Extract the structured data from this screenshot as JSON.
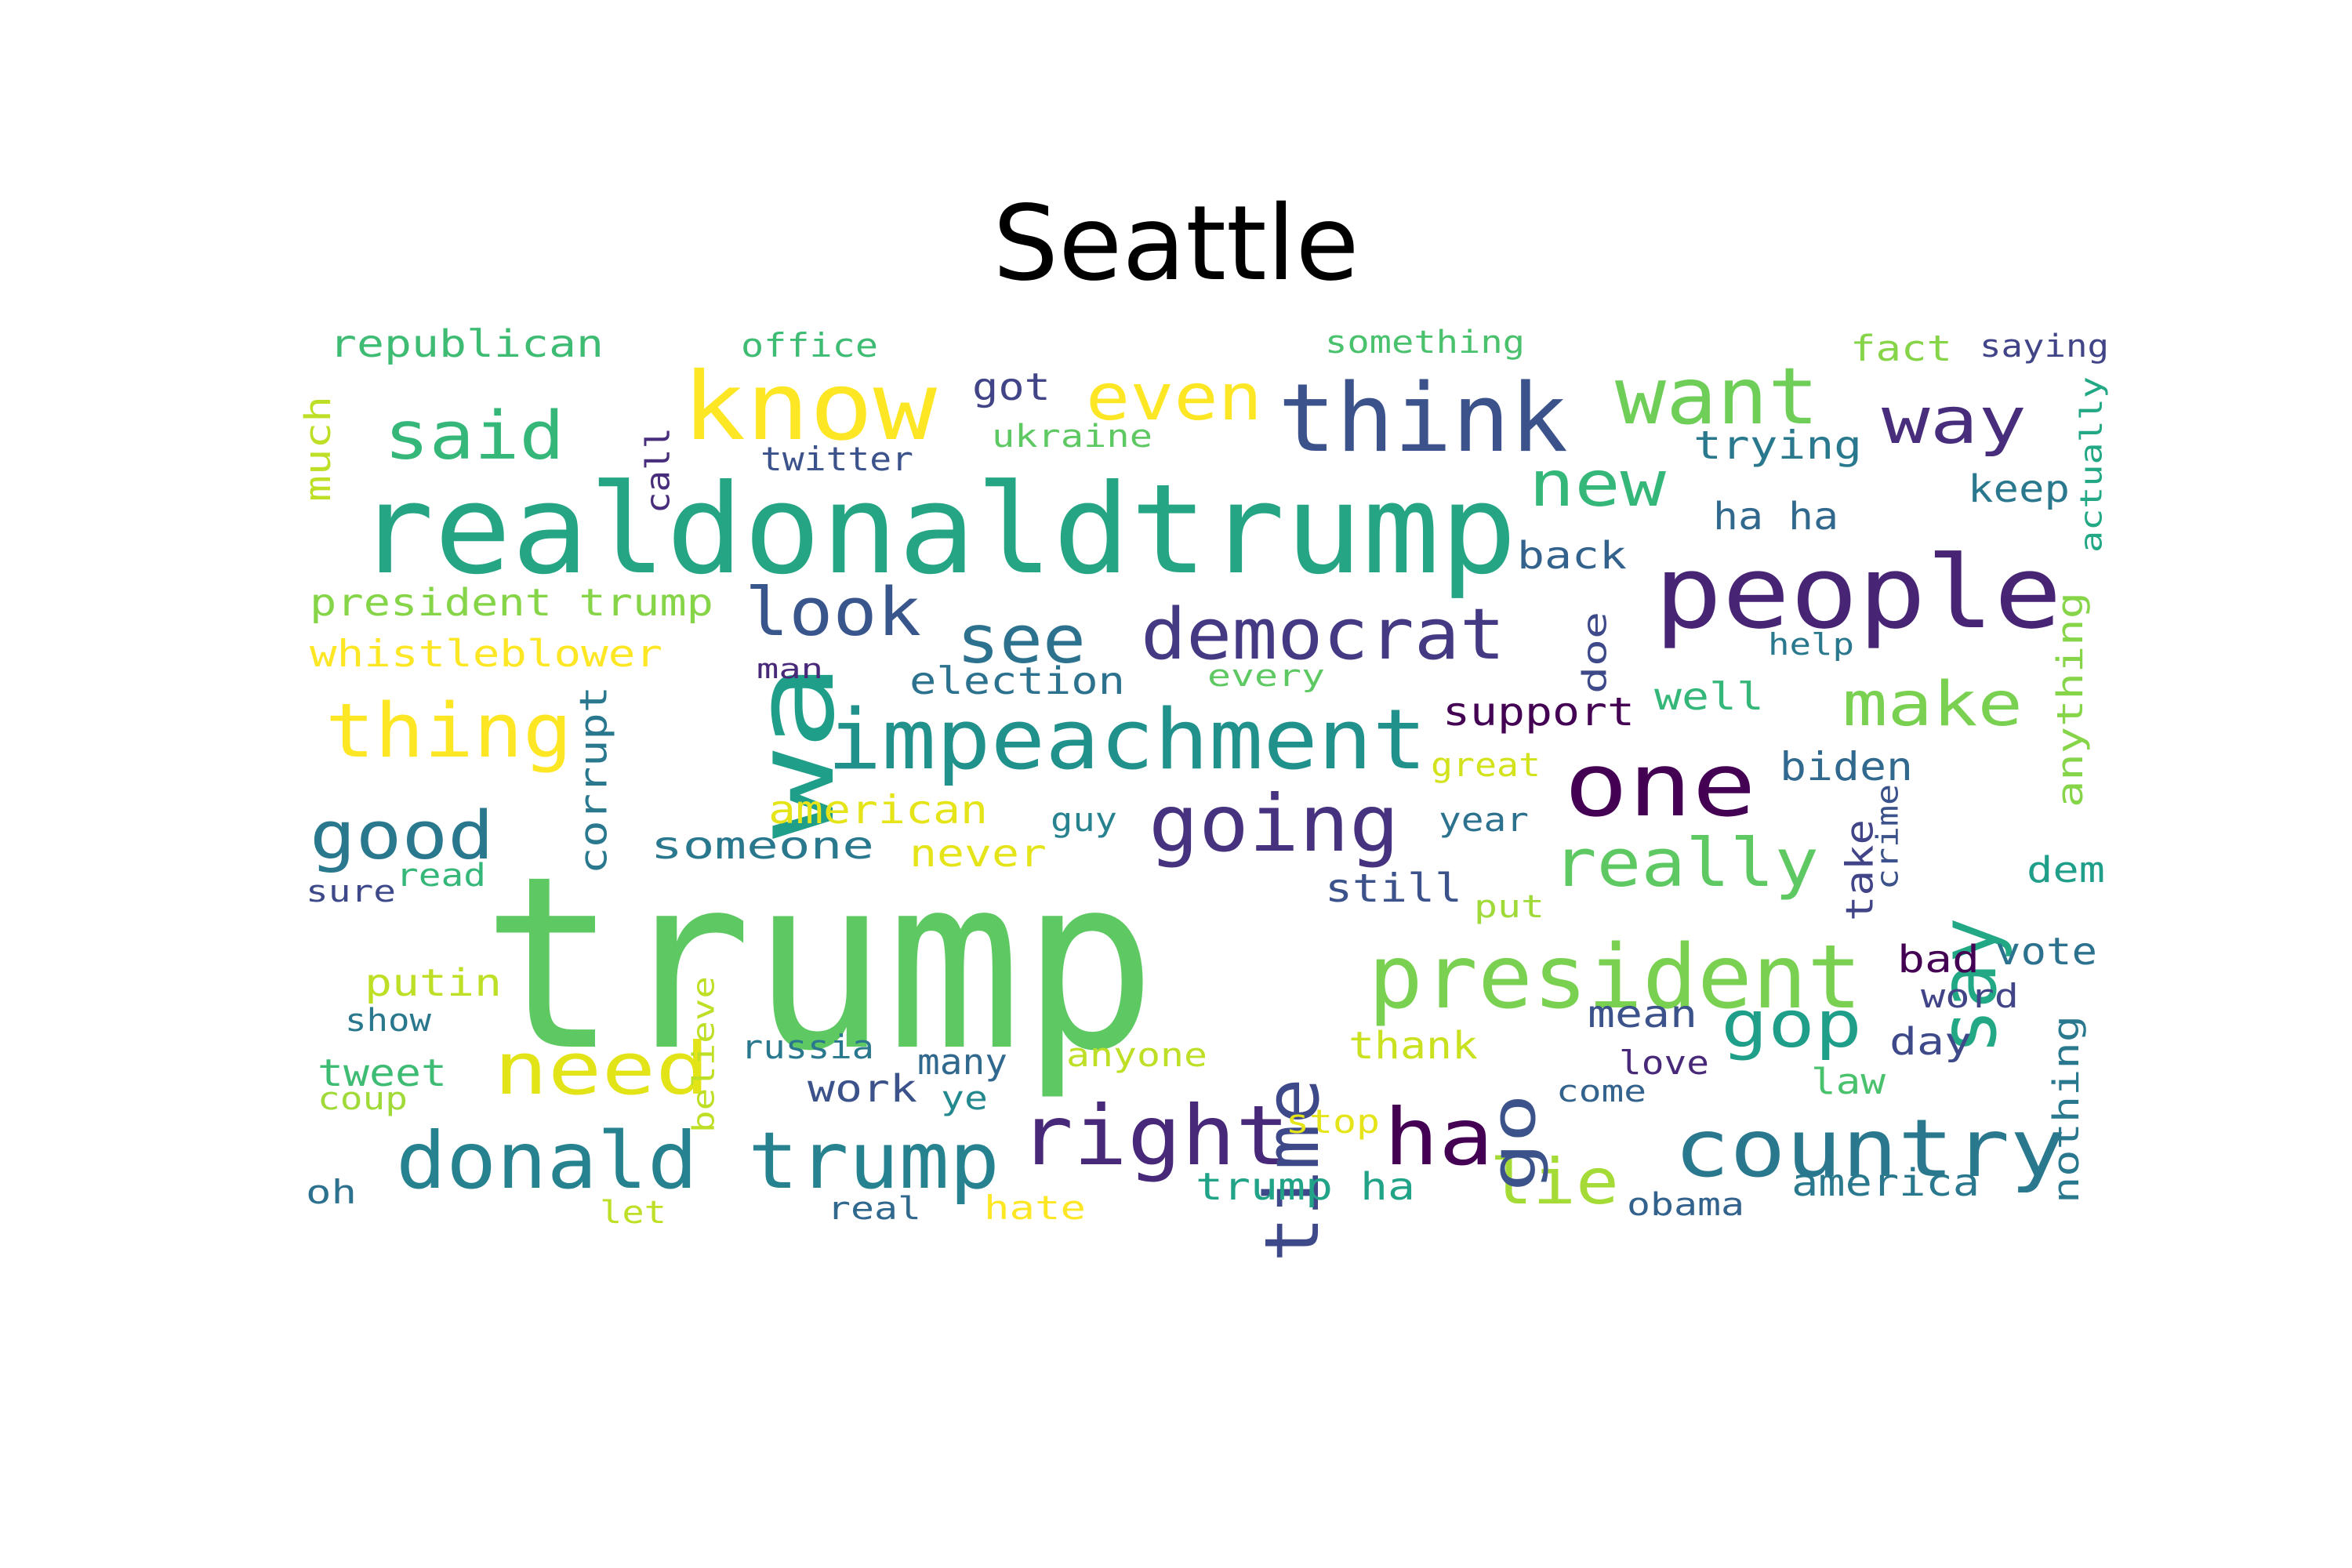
{
  "title": "Seattle",
  "words": [
    {
      "text": "trump",
      "color": "#5ec962"
    },
    {
      "text": "realdonaldtrump",
      "color": "#25a584"
    },
    {
      "text": "wa",
      "color": "#1f9e89"
    },
    {
      "text": "people",
      "color": "#482475"
    },
    {
      "text": "impeachment",
      "color": "#21918c"
    },
    {
      "text": "president",
      "color": "#7ad151"
    },
    {
      "text": "think",
      "color": "#3b528b"
    },
    {
      "text": "know",
      "color": "#fde725"
    },
    {
      "text": "donald trump",
      "color": "#26828e"
    },
    {
      "text": "country",
      "color": "#2a788e"
    },
    {
      "text": "right",
      "color": "#482878"
    },
    {
      "text": "one",
      "color": "#440154"
    },
    {
      "text": "want",
      "color": "#6ece58"
    },
    {
      "text": "democrat",
      "color": "#443983"
    },
    {
      "text": "going",
      "color": "#46327e"
    },
    {
      "text": "ha",
      "color": "#440154"
    },
    {
      "text": "thing",
      "color": "#fde725"
    },
    {
      "text": "say",
      "color": "#22a884"
    },
    {
      "text": "time",
      "color": "#3e4989"
    },
    {
      "text": "need",
      "color": "#e2e418"
    },
    {
      "text": "said",
      "color": "#35b779"
    },
    {
      "text": "good",
      "color": "#2a788e"
    },
    {
      "text": "see",
      "color": "#2c728e"
    },
    {
      "text": "look",
      "color": "#39568c"
    },
    {
      "text": "really",
      "color": "#5ec962"
    },
    {
      "text": "even",
      "color": "#fde725"
    },
    {
      "text": "gop",
      "color": "#1f9e89"
    },
    {
      "text": "way",
      "color": "#472d7b"
    },
    {
      "text": "lie",
      "color": "#a5db36"
    },
    {
      "text": "new",
      "color": "#35b779"
    },
    {
      "text": "make",
      "color": "#7ad151"
    },
    {
      "text": "go",
      "color": "#3b528b"
    },
    {
      "text": "republican",
      "color": "#3fbc73"
    },
    {
      "text": "office",
      "color": "#3fbc73"
    },
    {
      "text": "something",
      "color": "#4ac16d"
    },
    {
      "text": "fact",
      "color": "#86d549"
    },
    {
      "text": "saying",
      "color": "#414487"
    },
    {
      "text": "much",
      "color": "#bddf26"
    },
    {
      "text": "call",
      "color": "#472d7b"
    },
    {
      "text": "got",
      "color": "#414487"
    },
    {
      "text": "twitter",
      "color": "#3b528b"
    },
    {
      "text": "ukraine",
      "color": "#5ec962"
    },
    {
      "text": "trying",
      "color": "#2a788e"
    },
    {
      "text": "keep",
      "color": "#2a788e"
    },
    {
      "text": "actually",
      "color": "#22a884"
    },
    {
      "text": "ha ha",
      "color": "#31688e"
    },
    {
      "text": "back",
      "color": "#33638d"
    },
    {
      "text": "president trump",
      "color": "#86d549"
    },
    {
      "text": "whistleblower",
      "color": "#fde725"
    },
    {
      "text": "man",
      "color": "#482878"
    },
    {
      "text": "election",
      "color": "#2c728e"
    },
    {
      "text": "every",
      "color": "#5ec962"
    },
    {
      "text": "doe",
      "color": "#3e4989"
    },
    {
      "text": "help",
      "color": "#2a788e"
    },
    {
      "text": "anything",
      "color": "#86d549"
    },
    {
      "text": "support",
      "color": "#440154"
    },
    {
      "text": "well",
      "color": "#35b779"
    },
    {
      "text": "corrupt",
      "color": "#2a788e"
    },
    {
      "text": "great",
      "color": "#d2e21b"
    },
    {
      "text": "biden",
      "color": "#31688e"
    },
    {
      "text": "american",
      "color": "#e5e419"
    },
    {
      "text": "guy",
      "color": "#26828e"
    },
    {
      "text": "year",
      "color": "#2c728e"
    },
    {
      "text": "take",
      "color": "#414487"
    },
    {
      "text": "crime",
      "color": "#3b528b"
    },
    {
      "text": "someone",
      "color": "#2a788e"
    },
    {
      "text": "never",
      "color": "#e5e419"
    },
    {
      "text": "read",
      "color": "#35b779"
    },
    {
      "text": "sure",
      "color": "#3e4989"
    },
    {
      "text": "still",
      "color": "#3b528b"
    },
    {
      "text": "put",
      "color": "#a0da39"
    },
    {
      "text": "dem",
      "color": "#1f9e89"
    },
    {
      "text": "bad",
      "color": "#440154"
    },
    {
      "text": "vote",
      "color": "#2c728e"
    },
    {
      "text": "putin",
      "color": "#bddf26"
    },
    {
      "text": "word",
      "color": "#414487"
    },
    {
      "text": "show",
      "color": "#2a788e"
    },
    {
      "text": "believe",
      "color": "#bddf26"
    },
    {
      "text": "russia",
      "color": "#2a788e"
    },
    {
      "text": "mean",
      "color": "#3b528b"
    },
    {
      "text": "day",
      "color": "#3e4989"
    },
    {
      "text": "thank",
      "color": "#cae11f"
    },
    {
      "text": "nothing",
      "color": "#2a788e"
    },
    {
      "text": "many",
      "color": "#31688e"
    },
    {
      "text": "anyone",
      "color": "#bddf26"
    },
    {
      "text": "tweet",
      "color": "#3fbc73"
    },
    {
      "text": "coup",
      "color": "#a0da39"
    },
    {
      "text": "work",
      "color": "#3b528b"
    },
    {
      "text": "ye",
      "color": "#23898e"
    },
    {
      "text": "love",
      "color": "#482878"
    },
    {
      "text": "law",
      "color": "#4ac16d"
    },
    {
      "text": "come",
      "color": "#33638d"
    },
    {
      "text": "stop",
      "color": "#e5e419"
    },
    {
      "text": "oh",
      "color": "#2c728e"
    },
    {
      "text": "let",
      "color": "#bddf26"
    },
    {
      "text": "real",
      "color": "#31688e"
    },
    {
      "text": "hate",
      "color": "#fde725"
    },
    {
      "text": "trump ha",
      "color": "#20a386"
    },
    {
      "text": "obama",
      "color": "#33638d"
    },
    {
      "text": "america",
      "color": "#2a788e"
    }
  ]
}
